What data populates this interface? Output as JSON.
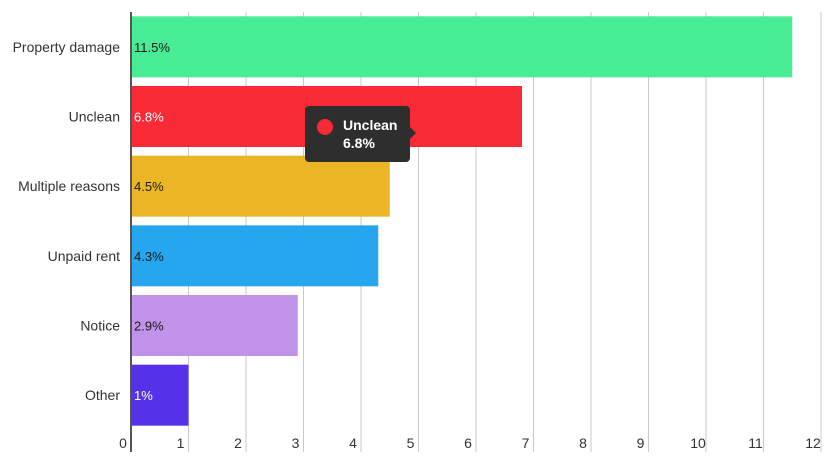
{
  "chart_data": {
    "type": "bar",
    "orientation": "horizontal",
    "categories": [
      "Property damage",
      "Unclean",
      "Multiple reasons",
      "Unpaid rent",
      "Notice",
      "Other"
    ],
    "values": [
      11.5,
      6.8,
      4.5,
      4.3,
      2.9,
      1
    ],
    "value_labels": [
      "11.5%",
      "6.8%",
      "4.5%",
      "4.3%",
      "2.9%",
      "1%"
    ],
    "colors": [
      "#48ec94",
      "#f72a35",
      "#ebb525",
      "#25a6ee",
      "#c092ea",
      "#5532e9"
    ],
    "label_colors": [
      "#1a1a1a",
      "#ffffff",
      "#1a1a1a",
      "#1a1a1a",
      "#1a1a1a",
      "#ffffff"
    ],
    "x_ticks": [
      "0",
      "1",
      "2",
      "3",
      "4",
      "5",
      "6",
      "7",
      "8",
      "9",
      "10",
      "11",
      "12"
    ],
    "xlim": [
      0,
      12
    ],
    "grid": true,
    "title": "",
    "xlabel": "",
    "ylabel": ""
  },
  "tooltip": {
    "series": "Unclean",
    "value": "6.8%",
    "color": "#f72a35"
  }
}
